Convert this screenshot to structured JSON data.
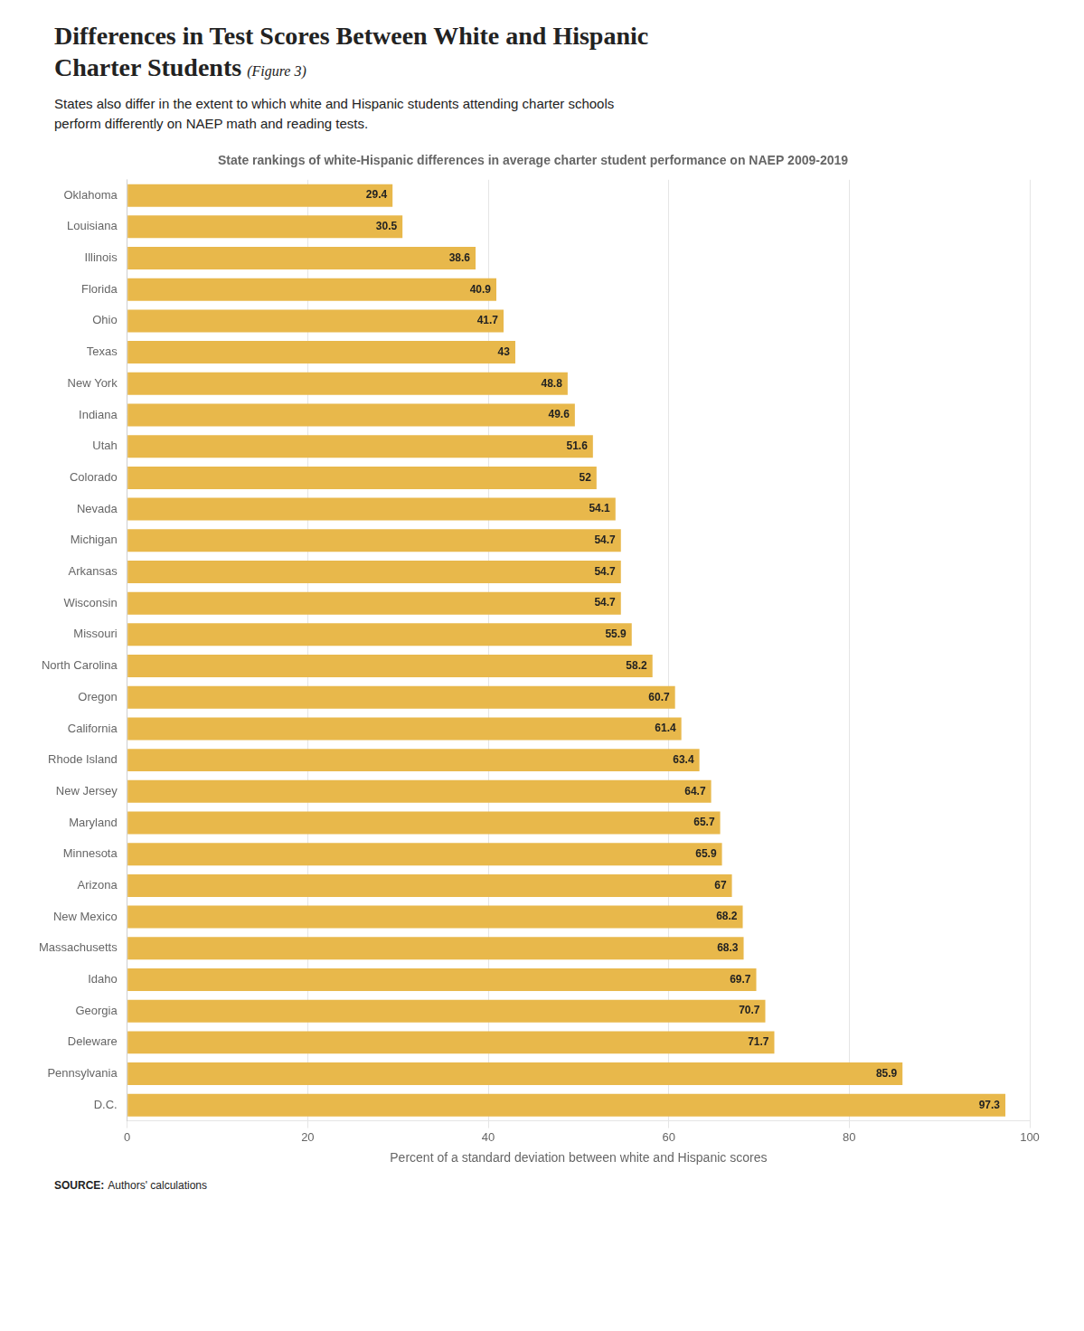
{
  "chart_data": {
    "type": "bar",
    "orientation": "horizontal",
    "title": "Differences in Test Scores Between White and Hispanic\nCharter Students",
    "subtitle": "States also differ in the extent to which white and Hispanic students attending charter schools\nperform differently on NAEP math and reading tests.",
    "annotations": [
      "(Figure 3)",
      "State rankings of white-Hispanic differences in average charter student performance on NAEP 2009-2019",
      "SOURCE:",
      "Authors' calculations"
    ],
    "x_label": "Percent of a standard deviation between white and Hispanic scores",
    "categories": [
      "Oklahoma",
      "Louisiana",
      "Illinois",
      "Florida",
      "Ohio",
      "Texas",
      "New York",
      "Indiana",
      "Utah",
      "Colorado",
      "Nevada",
      "Michigan",
      "Arkansas",
      "Wisconsin",
      "Missouri",
      "North Carolina",
      "Oregon",
      "California",
      "Rhode Island",
      "New Jersey",
      "Maryland",
      "Minnesota",
      "Arizona",
      "New Mexico",
      "Massachusetts",
      "Idaho",
      "Georgia",
      "Deleware",
      "Pennsylvania",
      "D.C."
    ],
    "values": [
      29.4,
      30.5,
      38.6,
      40.9,
      41.7,
      43,
      48.8,
      49.6,
      51.6,
      52,
      54.1,
      54.7,
      54.7,
      54.7,
      55.9,
      58.2,
      60.7,
      61.4,
      63.4,
      64.7,
      65.7,
      65.9,
      67,
      68.2,
      68.3,
      69.7,
      70.7,
      71.7,
      85.9,
      97.3
    ],
    "color": "#E8B84B",
    "xlim": [
      0,
      100
    ],
    "xticks": [
      0,
      20,
      40,
      60,
      80,
      100
    ],
    "grid": true,
    "data_labels": true
  }
}
